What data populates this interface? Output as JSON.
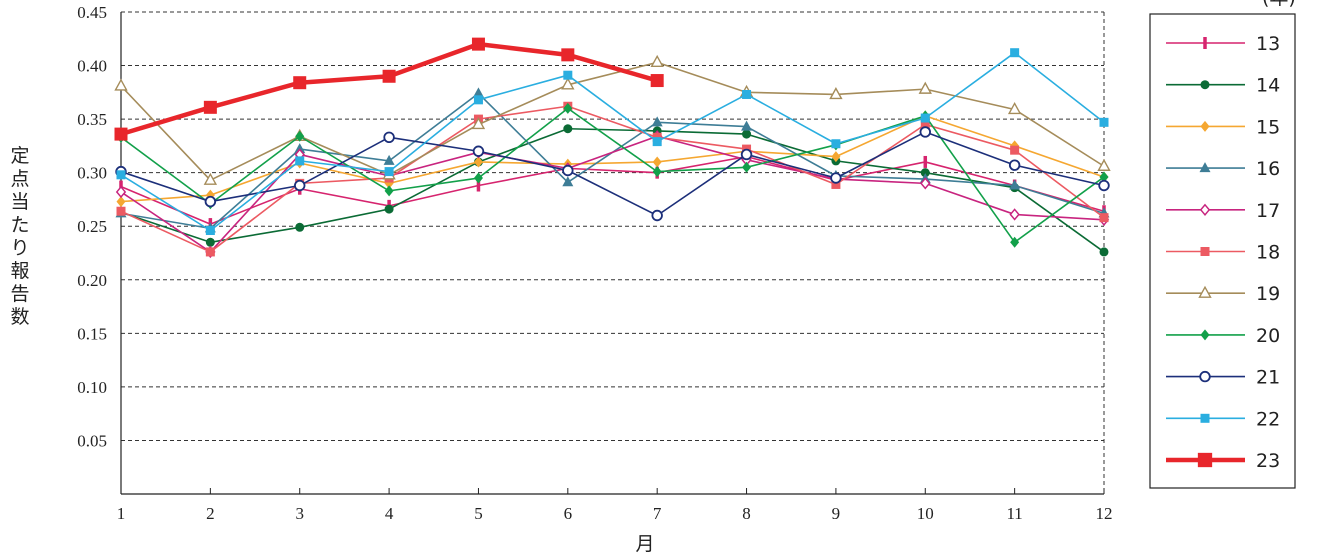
{
  "chart_data": {
    "type": "line",
    "xlabel": "月",
    "ylabel": "定点当たり報告数",
    "unit_label": "(年)",
    "x": [
      1,
      2,
      3,
      4,
      5,
      6,
      7,
      8,
      9,
      10,
      11,
      12
    ],
    "x_ticks": [
      "1",
      "2",
      "3",
      "4",
      "5",
      "6",
      "7",
      "8",
      "9",
      "10",
      "11",
      "12"
    ],
    "ylim": [
      0,
      0.45
    ],
    "y_ticks": [
      "0.05",
      "0.10",
      "0.15",
      "0.20",
      "0.25",
      "0.30",
      "0.35",
      "0.40",
      "0.45"
    ],
    "grid": "horizontal-dashed",
    "legend": "right",
    "series": [
      {
        "name": "13",
        "color": "#d6246e",
        "marker": "bar",
        "values": [
          0.287,
          0.252,
          0.285,
          0.269,
          0.288,
          0.304,
          0.3,
          0.315,
          0.293,
          0.31,
          0.288,
          0.264
        ]
      },
      {
        "name": "14",
        "color": "#0b6b35",
        "marker": "circle-filled",
        "values": [
          0.263,
          0.235,
          0.249,
          0.266,
          0.31,
          0.341,
          0.339,
          0.336,
          0.311,
          0.3,
          0.286,
          0.226
        ]
      },
      {
        "name": "15",
        "color": "#f5a731",
        "marker": "diamond-filled",
        "values": [
          0.273,
          0.279,
          0.309,
          0.29,
          0.31,
          0.308,
          0.31,
          0.32,
          0.315,
          0.353,
          0.325,
          0.296
        ]
      },
      {
        "name": "16",
        "color": "#3e7d96",
        "marker": "triangle-filled",
        "values": [
          0.262,
          0.248,
          0.322,
          0.311,
          0.374,
          0.291,
          0.347,
          0.343,
          0.297,
          0.294,
          0.288,
          0.262
        ]
      },
      {
        "name": "17",
        "color": "#c8247f",
        "marker": "diamond-open",
        "values": [
          0.282,
          0.226,
          0.317,
          0.297,
          0.319,
          0.304,
          0.334,
          0.312,
          0.294,
          0.29,
          0.261,
          0.256
        ]
      },
      {
        "name": "18",
        "color": "#ec5a62",
        "marker": "square-filled",
        "values": [
          0.264,
          0.226,
          0.29,
          0.295,
          0.35,
          0.362,
          0.333,
          0.322,
          0.289,
          0.345,
          0.321,
          0.258
        ]
      },
      {
        "name": "19",
        "color": "#a58c5a",
        "marker": "triangle-open",
        "values": [
          0.381,
          0.293,
          0.334,
          0.298,
          0.345,
          0.382,
          0.403,
          0.375,
          0.373,
          0.378,
          0.359,
          0.306
        ]
      },
      {
        "name": "20",
        "color": "#12a04a",
        "marker": "diamond-filled",
        "values": [
          0.333,
          0.271,
          0.334,
          0.283,
          0.295,
          0.36,
          0.301,
          0.305,
          0.326,
          0.353,
          0.235,
          0.296
        ]
      },
      {
        "name": "21",
        "color": "#1c2f7a",
        "marker": "circle-open",
        "values": [
          0.301,
          0.273,
          0.288,
          0.333,
          0.32,
          0.302,
          0.26,
          0.317,
          0.295,
          0.338,
          0.307,
          0.288
        ]
      },
      {
        "name": "22",
        "color": "#2aaee0",
        "marker": "square-filled",
        "values": [
          0.298,
          0.246,
          0.311,
          0.301,
          0.368,
          0.391,
          0.329,
          0.373,
          0.327,
          0.351,
          0.412,
          0.347
        ]
      },
      {
        "name": "23",
        "color": "#e8262b",
        "marker": "square-large",
        "bold": true,
        "values": [
          0.336,
          0.361,
          0.384,
          0.39,
          0.42,
          0.41,
          0.386,
          null,
          null,
          null,
          null,
          null
        ]
      }
    ]
  }
}
